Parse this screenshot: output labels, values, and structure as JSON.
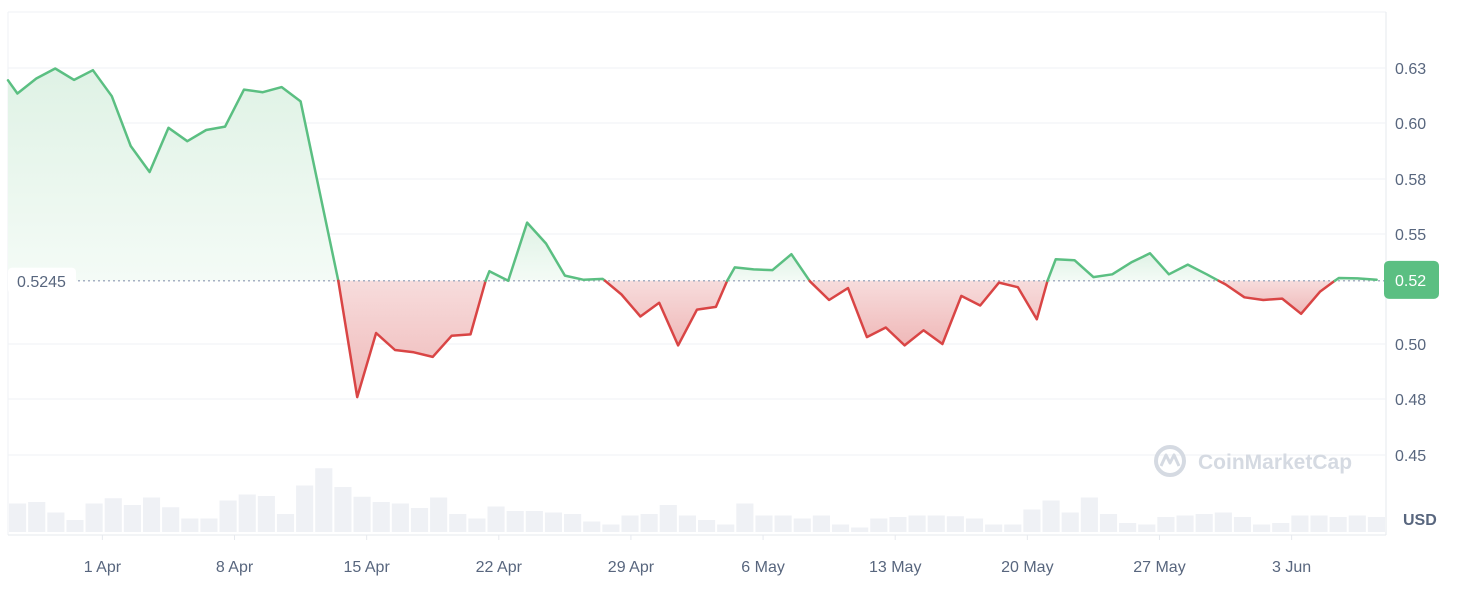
{
  "chart_data": {
    "type": "line",
    "currency": "USD",
    "baseline": 0.5245,
    "baseline_label": "0.5245",
    "current_price_label": "0.52",
    "ylim": [
      0.425,
      0.65
    ],
    "y_ticks": [
      0.45,
      0.48,
      0.5,
      0.52,
      0.55,
      0.58,
      0.6,
      0.63
    ],
    "y_tick_labels": [
      "0.45",
      "0.48",
      "0.50",
      "0.52",
      "0.55",
      "0.58",
      "0.60",
      "0.63"
    ],
    "x_start": "2024-03-27",
    "x_end": "2024-06-08",
    "x_ticks": [
      "2024-04-01",
      "2024-04-08",
      "2024-04-15",
      "2024-04-22",
      "2024-04-29",
      "2024-05-06",
      "2024-05-13",
      "2024-05-20",
      "2024-05-27",
      "2024-06-03"
    ],
    "x_tick_labels": [
      "1 Apr",
      "8 Apr",
      "15 Apr",
      "22 Apr",
      "29 Apr",
      "6 May",
      "13 May",
      "20 May",
      "27 May",
      "3 Jun"
    ],
    "grid": true,
    "colors": {
      "up": "#16c784",
      "up_line": "#5bbf82",
      "down_line": "#d94545",
      "down_fill": "#f2c4c4",
      "up_fill": "#e6f5ea",
      "grid": "#eff2f5",
      "axis_text": "#58667e",
      "badge": "#5bbf82"
    },
    "series": [
      {
        "points": [
          [
            "2024-03-27 00:00",
            0.6233
          ],
          [
            "2024-03-27 12:00",
            0.6161
          ],
          [
            "2024-03-28 12:00",
            0.6243
          ],
          [
            "2024-03-29 12:00",
            0.6297
          ],
          [
            "2024-03-30 12:00",
            0.6235
          ],
          [
            "2024-03-31 12:00",
            0.6288
          ],
          [
            "2024-04-01 12:00",
            0.6146
          ],
          [
            "2024-04-02 12:00",
            0.5918
          ],
          [
            "2024-04-03 12:00",
            0.5825
          ],
          [
            "2024-04-04 12:00",
            0.5983
          ],
          [
            "2024-04-05 12:00",
            0.5935
          ],
          [
            "2024-04-06 12:00",
            0.5975
          ],
          [
            "2024-04-07 12:00",
            0.5987
          ],
          [
            "2024-04-08 12:00",
            0.6182
          ],
          [
            "2024-04-09 12:00",
            0.6168
          ],
          [
            "2024-04-10 12:00",
            0.6196
          ],
          [
            "2024-04-11 12:00",
            0.6118
          ],
          [
            "2024-04-13 12:00",
            0.5245
          ],
          [
            "2024-04-14 12:00",
            0.4807
          ],
          [
            "2024-04-15 12:00",
            0.504
          ],
          [
            "2024-04-16 12:00",
            0.4978
          ],
          [
            "2024-04-17 12:00",
            0.497
          ],
          [
            "2024-04-18 12:00",
            0.4953
          ],
          [
            "2024-04-19 12:00",
            0.503
          ],
          [
            "2024-04-20 12:00",
            0.5035
          ],
          [
            "2024-04-21 12:00",
            0.5297
          ],
          [
            "2024-04-22 12:00",
            0.5245
          ],
          [
            "2024-04-23 12:00",
            0.5562
          ],
          [
            "2024-04-24 12:00",
            0.5448
          ],
          [
            "2024-04-25 12:00",
            0.5273
          ],
          [
            "2024-04-26 12:00",
            0.525
          ],
          [
            "2024-04-27 12:00",
            0.5255
          ],
          [
            "2024-04-28 12:00",
            0.518
          ],
          [
            "2024-04-29 12:00",
            0.51
          ],
          [
            "2024-04-30 12:00",
            0.515
          ],
          [
            "2024-05-01 12:00",
            0.4995
          ],
          [
            "2024-05-02 12:00",
            0.5125
          ],
          [
            "2024-05-03 12:00",
            0.5135
          ],
          [
            "2024-05-04 12:00",
            0.5318
          ],
          [
            "2024-05-05 12:00",
            0.5307
          ],
          [
            "2024-05-06 12:00",
            0.5303
          ],
          [
            "2024-05-07 12:00",
            0.539
          ],
          [
            "2024-05-08 12:00",
            0.524
          ],
          [
            "2024-05-09 12:00",
            0.516
          ],
          [
            "2024-05-10 12:00",
            0.5205
          ],
          [
            "2024-05-11 12:00",
            0.5025
          ],
          [
            "2024-05-12 12:00",
            0.506
          ],
          [
            "2024-05-13 12:00",
            0.4995
          ],
          [
            "2024-05-14 12:00",
            0.505
          ],
          [
            "2024-05-15 12:00",
            0.5
          ],
          [
            "2024-05-16 12:00",
            0.5175
          ],
          [
            "2024-05-17 12:00",
            0.514
          ],
          [
            "2024-05-18 12:00",
            0.5235
          ],
          [
            "2024-05-19 12:00",
            0.521
          ],
          [
            "2024-05-20 12:00",
            0.509
          ],
          [
            "2024-05-21 12:00",
            0.5362
          ],
          [
            "2024-05-22 12:00",
            0.5357
          ],
          [
            "2024-05-23 12:00",
            0.5265
          ],
          [
            "2024-05-24 12:00",
            0.528
          ],
          [
            "2024-05-25 12:00",
            0.5345
          ],
          [
            "2024-05-26 12:00",
            0.5395
          ],
          [
            "2024-05-27 12:00",
            0.528
          ],
          [
            "2024-05-28 12:00",
            0.5333
          ],
          [
            "2024-05-29 12:00",
            0.528
          ],
          [
            "2024-05-30 12:00",
            0.5225
          ],
          [
            "2024-05-31 12:00",
            0.517
          ],
          [
            "2024-06-01 12:00",
            0.516
          ],
          [
            "2024-06-02 12:00",
            0.5165
          ],
          [
            "2024-06-03 12:00",
            0.511
          ],
          [
            "2024-06-04 12:00",
            0.519
          ],
          [
            "2024-06-05 12:00",
            0.526
          ],
          [
            "2024-06-06 12:00",
            0.5258
          ],
          [
            "2024-06-07 12:00",
            0.525
          ]
        ]
      }
    ],
    "volume": {
      "relative": [
        0.38,
        0.4,
        0.26,
        0.16,
        0.38,
        0.45,
        0.36,
        0.46,
        0.33,
        0.18,
        0.18,
        0.42,
        0.5,
        0.48,
        0.24,
        0.62,
        0.85,
        0.6,
        0.47,
        0.4,
        0.38,
        0.32,
        0.46,
        0.24,
        0.18,
        0.34,
        0.28,
        0.28,
        0.26,
        0.24,
        0.14,
        0.1,
        0.22,
        0.24,
        0.36,
        0.22,
        0.16,
        0.1,
        0.38,
        0.22,
        0.22,
        0.18,
        0.22,
        0.1,
        0.06,
        0.18,
        0.2,
        0.22,
        0.22,
        0.21,
        0.18,
        0.1,
        0.1,
        0.3,
        0.42,
        0.26,
        0.46,
        0.24,
        0.12,
        0.1,
        0.2,
        0.22,
        0.24,
        0.26,
        0.2,
        0.1,
        0.12,
        0.22,
        0.22,
        0.2,
        0.22,
        0.2
      ]
    }
  },
  "watermark": {
    "text": "CoinMarketCap",
    "icon": "coinmarketcap-logo"
  }
}
